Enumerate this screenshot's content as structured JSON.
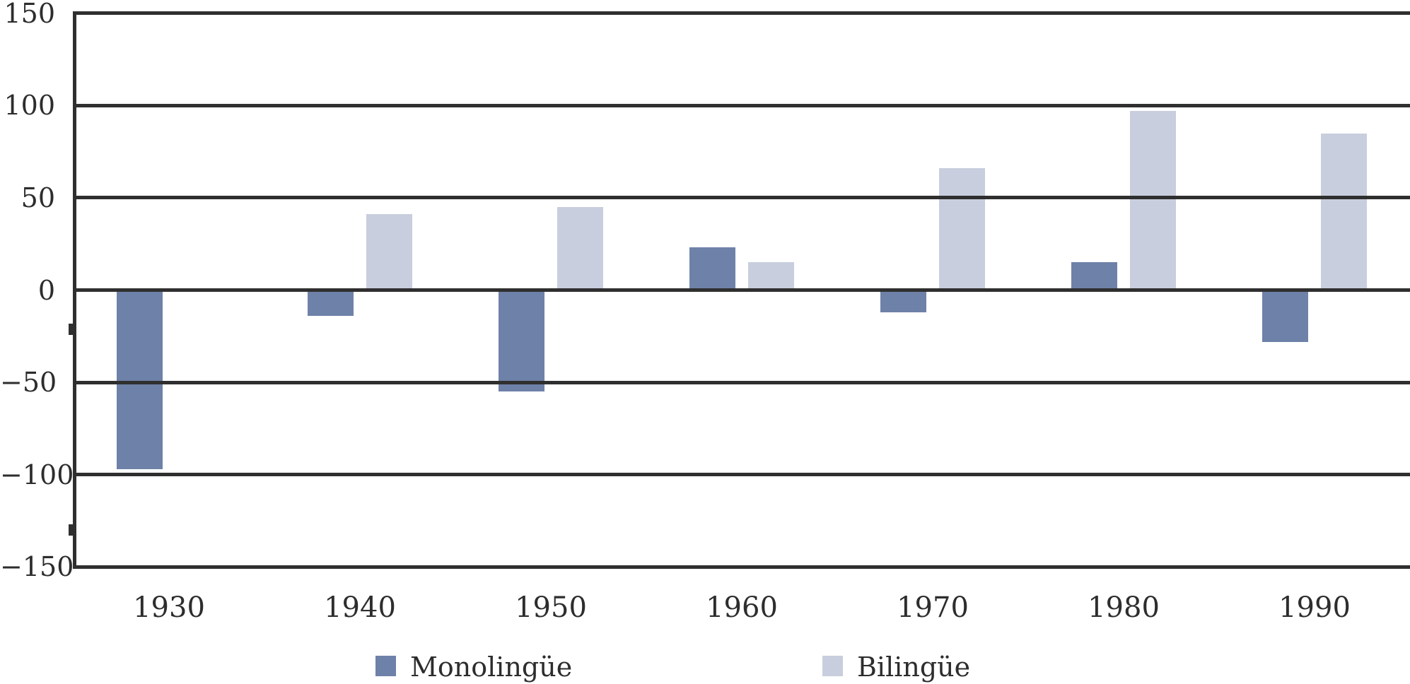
{
  "chart_data": {
    "type": "bar",
    "title": "",
    "xlabel": "",
    "ylabel": "",
    "categories": [
      "1930",
      "1940",
      "1950",
      "1960",
      "1970",
      "1980",
      "1990"
    ],
    "series": [
      {
        "name": "Monolingüe",
        "color": "#6e81a8",
        "values": [
          -97,
          -14,
          -55,
          23,
          -12,
          15,
          -28
        ]
      },
      {
        "name": "Bilingüe",
        "color": "#c8cedd",
        "values": [
          0,
          41,
          45,
          15,
          66,
          97,
          85
        ]
      }
    ],
    "ylim": [
      -150,
      150
    ],
    "yticks": [
      150,
      100,
      50,
      0,
      -50,
      -100,
      -150
    ],
    "ytick_labels": [
      "150",
      "100",
      "50",
      "0",
      "−50",
      "−100",
      "−150"
    ],
    "grid": true,
    "gridline_color": "#2f2f2f",
    "axis_color": "#2f2f2f",
    "text_color": "#2d2d2d",
    "background_color": "#ffffff",
    "legend_position": "bottom"
  },
  "legend": {
    "items": [
      {
        "label": "Monolingüe",
        "color": "#6e81a8"
      },
      {
        "label": "Bilingüe",
        "color": "#c8cedd"
      }
    ]
  }
}
